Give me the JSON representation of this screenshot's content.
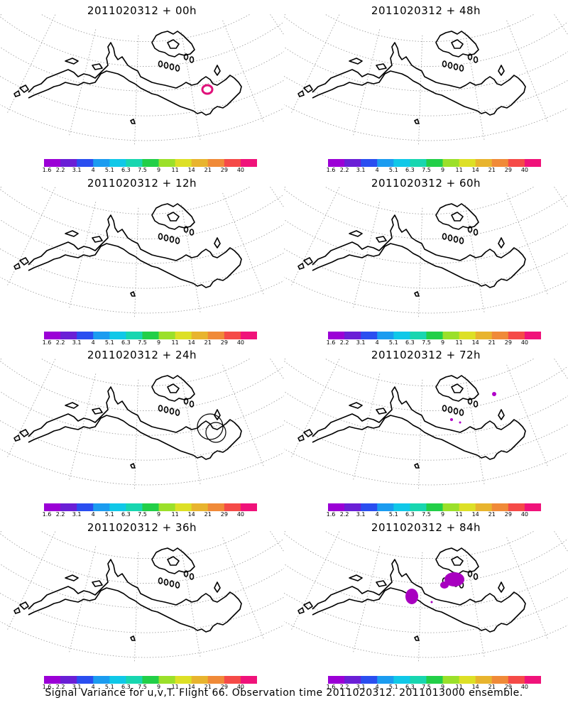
{
  "colorbar": {
    "colors": [
      "#9b00d6",
      "#6a1fd6",
      "#2a4ef0",
      "#1b9cf0",
      "#10c8e8",
      "#18d6b0",
      "#22cf48",
      "#9be02a",
      "#dde026",
      "#e8b42e",
      "#f08a38",
      "#f54a48",
      "#f0127a"
    ],
    "labels": [
      "1.6",
      "2.2",
      "3.1",
      "4",
      "5.1",
      "6.3",
      "7.5",
      "9",
      "11",
      "14",
      "21",
      "29",
      "40"
    ]
  },
  "panels": [
    {
      "title": "2011020312 + 00h",
      "features": [
        {
          "kind": "ring",
          "color": "#e0107a"
        }
      ]
    },
    {
      "title": "2011020312 + 48h",
      "features": []
    },
    {
      "title": "2011020312 + 12h",
      "features": []
    },
    {
      "title": "2011020312 + 60h",
      "features": []
    },
    {
      "title": "2011020312 + 24h",
      "features": [
        {
          "kind": "circles",
          "color": "#000000"
        }
      ]
    },
    {
      "title": "2011020312 + 72h",
      "features": [
        {
          "kind": "dots",
          "color": "#b000c8"
        }
      ]
    },
    {
      "title": "2011020312 + 36h",
      "features": []
    },
    {
      "title": "2011020312 + 84h",
      "features": [
        {
          "kind": "blobs",
          "color": "#a800c0"
        }
      ]
    }
  ],
  "footer": "Signal Variance for u,v,T. Flight 66. Observation time 2011020312. 2011013000 ensemble."
}
